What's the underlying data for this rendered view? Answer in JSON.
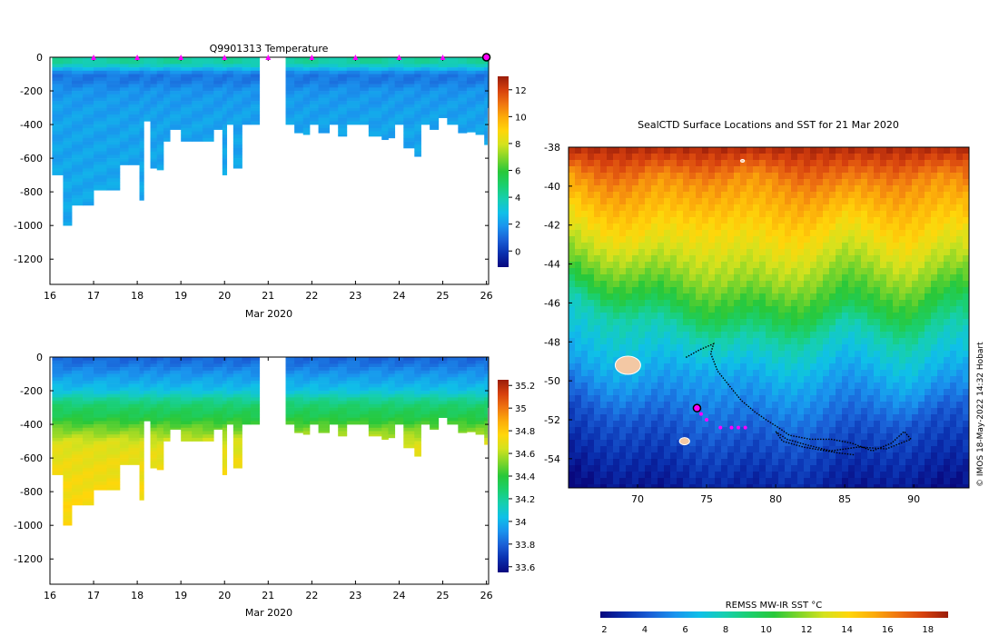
{
  "colors": {
    "temperature_ramp": [
      "#08087e",
      "#0a2fae",
      "#1a5fd6",
      "#1a93ee",
      "#0fc0e8",
      "#16cfb0",
      "#1bcf6e",
      "#28c83a",
      "#7fd52a",
      "#d4e21e",
      "#ffd60a",
      "#fcac0a",
      "#ef7411",
      "#d6400e",
      "#9a1d0a"
    ],
    "salinity_ramp": [
      "#08087e",
      "#0a2fae",
      "#1a5fd6",
      "#1a93ee",
      "#0fc0e8",
      "#16cfb0",
      "#1bcf6e",
      "#28c83a",
      "#7fd52a",
      "#d4e21e",
      "#ffd60a",
      "#fcac0a",
      "#ef7411",
      "#d6400e",
      "#9a1d0a"
    ],
    "sst_ramp": [
      "#08087e",
      "#0a2fae",
      "#1a5fd6",
      "#1a93ee",
      "#0fc0e8",
      "#16cfb0",
      "#1bcf6e",
      "#28c83a",
      "#7fd52a",
      "#d4e21e",
      "#ffd60a",
      "#fcac0a",
      "#ef7411",
      "#d6400e",
      "#9a1d0a"
    ],
    "marker": "#ff00ff",
    "track": "#000000"
  },
  "chart_data": [
    {
      "id": "temperature_section",
      "type": "heatmap",
      "title": "Q9901313  Temperature",
      "xlabel": "Mar 2020",
      "ylabel": "",
      "xlim": [
        16,
        26.05
      ],
      "ylim": [
        -1350,
        0
      ],
      "xticks": [
        16,
        17,
        18,
        19,
        20,
        21,
        22,
        23,
        24,
        25,
        26
      ],
      "yticks": [
        0,
        -200,
        -400,
        -600,
        -800,
        -1000,
        -1200
      ],
      "gap": [
        20.8,
        21.35
      ],
      "profile_times": [
        16.05,
        16.3,
        16.5,
        16.75,
        17.0,
        17.3,
        17.6,
        17.8,
        18.05,
        18.15,
        18.3,
        18.45,
        18.6,
        18.75,
        19.0,
        19.25,
        19.5,
        19.75,
        19.95,
        20.05,
        20.2,
        20.4,
        20.6,
        21.4,
        21.6,
        21.8,
        21.95,
        22.15,
        22.4,
        22.6,
        22.8,
        23.1,
        23.3,
        23.6,
        23.75,
        23.9,
        24.1,
        24.35,
        24.5,
        24.7,
        24.9,
        25.1,
        25.35,
        25.55,
        25.75,
        25.95,
        26.02
      ],
      "profile_max_depths": [
        700,
        1000,
        880,
        880,
        790,
        790,
        640,
        640,
        850,
        380,
        660,
        670,
        500,
        430,
        500,
        500,
        500,
        430,
        700,
        400,
        660,
        400,
        400,
        400,
        450,
        460,
        400,
        450,
        400,
        470,
        400,
        400,
        470,
        490,
        480,
        400,
        540,
        590,
        400,
        430,
        360,
        400,
        450,
        445,
        460,
        520,
        300
      ],
      "temperature_profile": {
        "depth": [
          0,
          50,
          100,
          150,
          200,
          300,
          400,
          500,
          700,
          1000
        ],
        "value": [
          4.1,
          3.5,
          1.3,
          1.4,
          1.9,
          2.1,
          2.2,
          2.2,
          2.3,
          2.3
        ]
      },
      "colorbar": {
        "min": -1.2,
        "max": 13,
        "ticks": [
          0,
          2,
          4,
          6,
          8,
          10,
          12
        ],
        "tick_labels": [
          "0",
          "2",
          "4",
          "6",
          "8",
          "10",
          "12"
        ]
      },
      "profile_markers": [
        17,
        18,
        19,
        20,
        21,
        22,
        23,
        24,
        25
      ],
      "current_marker": 26.0
    },
    {
      "id": "salinity_section",
      "type": "heatmap",
      "title": "",
      "xlabel": "Mar 2020",
      "ylabel": "",
      "xlim": [
        16,
        26.05
      ],
      "ylim": [
        -1350,
        0
      ],
      "xticks": [
        16,
        17,
        18,
        19,
        20,
        21,
        22,
        23,
        24,
        25,
        26
      ],
      "yticks": [
        0,
        -200,
        -400,
        -600,
        -800,
        -1000,
        -1200
      ],
      "salinity_profile": {
        "depth": [
          0,
          50,
          100,
          150,
          200,
          250,
          300,
          350,
          400,
          450,
          500,
          600,
          700,
          900,
          1000
        ],
        "value": [
          33.8,
          33.85,
          33.92,
          33.98,
          34.05,
          34.2,
          34.3,
          34.35,
          34.45,
          34.55,
          34.65,
          34.7,
          34.72,
          34.75,
          34.76
        ]
      },
      "colorbar": {
        "min": 33.55,
        "max": 35.25,
        "ticks": [
          33.6,
          33.8,
          34,
          34.2,
          34.4,
          34.6,
          34.8,
          35,
          35.2
        ],
        "tick_labels": [
          "33.6",
          "33.8",
          "34",
          "34.2",
          "34.4",
          "34.6",
          "34.8",
          "35",
          "35.2"
        ]
      }
    },
    {
      "id": "sst_map",
      "type": "heatmap",
      "title": "SealCTD Surface Locations and SST for 21 Mar 2020",
      "xlabel": "",
      "ylabel": "",
      "xlim": [
        65,
        94
      ],
      "ylim": [
        -55.5,
        -38
      ],
      "xticks": [
        70,
        75,
        80,
        85,
        90
      ],
      "yticks": [
        -38,
        -40,
        -42,
        -44,
        -46,
        -48,
        -50,
        -52,
        -54
      ],
      "front_latitudes": [
        {
          "sst": 16,
          "lats": [
            -39.5,
            -40.0,
            -39.5,
            -39.8,
            -40.2,
            -39.6,
            -40.0
          ]
        },
        {
          "sst": 14,
          "lats": [
            -41.3,
            -42.5,
            -41.8,
            -42.8,
            -41.9,
            -42.6,
            -42.0
          ]
        },
        {
          "sst": 12,
          "lats": [
            -43.3,
            -44.2,
            -44.6,
            -45.2,
            -44.0,
            -44.8,
            -44.0
          ]
        },
        {
          "sst": 10,
          "lats": [
            -44.8,
            -45.8,
            -46.5,
            -46.9,
            -46.2,
            -46.6,
            -45.5
          ]
        },
        {
          "sst": 8,
          "lats": [
            -45.6,
            -47.0,
            -47.6,
            -48.3,
            -47.2,
            -48.0,
            -47.0
          ]
        },
        {
          "sst": 6,
          "lats": [
            -48.8,
            -50.0,
            -49.2,
            -50.5,
            -49.5,
            -50.3,
            -49.5
          ]
        },
        {
          "sst": 4,
          "lats": [
            -51.0,
            -52.2,
            -52.8,
            -53.3,
            -52.5,
            -52.0,
            -51.8
          ]
        }
      ],
      "front_longitudes": [
        65,
        70,
        75,
        80,
        85,
        90,
        94
      ],
      "track": [
        [
          73.5,
          -48.8
        ],
        [
          74.5,
          -48.4
        ],
        [
          75.5,
          -48.1
        ],
        [
          75.3,
          -48.6
        ],
        [
          75.8,
          -49.5
        ],
        [
          76.7,
          -50.3
        ],
        [
          77.5,
          -51.0
        ],
        [
          78.5,
          -51.6
        ],
        [
          79.3,
          -52.0
        ],
        [
          80.2,
          -52.4
        ],
        [
          81.0,
          -52.8
        ],
        [
          82.5,
          -53.0
        ],
        [
          84.0,
          -53.0
        ],
        [
          85.5,
          -53.2
        ],
        [
          87.0,
          -53.6
        ],
        [
          88.4,
          -53.2
        ],
        [
          89.3,
          -52.6
        ],
        [
          89.8,
          -53.0
        ],
        [
          88.0,
          -53.5
        ],
        [
          86.0,
          -53.4
        ],
        [
          84.0,
          -53.6
        ],
        [
          82.3,
          -53.3
        ],
        [
          80.8,
          -53.0
        ],
        [
          80.0,
          -52.6
        ],
        [
          80.5,
          -53.1
        ],
        [
          82.0,
          -53.4
        ],
        [
          84.5,
          -53.7
        ],
        [
          85.7,
          -53.8
        ]
      ],
      "position_markers": [
        [
          74.3,
          -51.4
        ],
        [
          74.6,
          -51.7
        ],
        [
          75.0,
          -52.0
        ],
        [
          76.0,
          -52.4
        ],
        [
          76.8,
          -52.4
        ],
        [
          77.3,
          -52.4
        ],
        [
          77.8,
          -52.4
        ]
      ],
      "current_position": [
        74.3,
        -51.4
      ],
      "islands": [
        [
          69.3,
          -49.2
        ],
        [
          73.4,
          -53.1
        ],
        [
          77.6,
          -38.7
        ]
      ],
      "colorbar": {
        "label": "REMSS MW-IR SST °C",
        "min": 1.8,
        "max": 19,
        "ticks": [
          2,
          4,
          6,
          8,
          10,
          12,
          14,
          16,
          18
        ],
        "tick_labels": [
          "2",
          "4",
          "6",
          "8",
          "10",
          "12",
          "14",
          "16",
          "18"
        ]
      },
      "credit": "© IMOS 18-May-2022 14:32 Hobart"
    }
  ]
}
